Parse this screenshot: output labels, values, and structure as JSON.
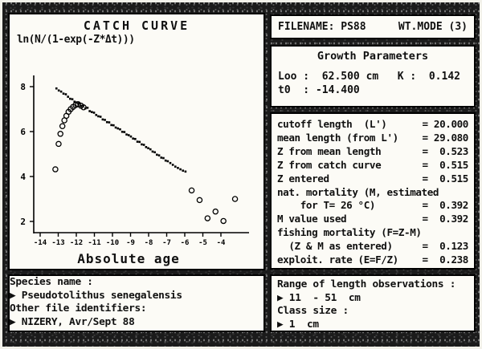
{
  "chart_panel": {
    "title": "CATCH CURVE",
    "y_axis_label": "ln(N/(1-exp(-Z*Δt)))",
    "x_axis_label": "Absolute age"
  },
  "chart_data": {
    "type": "scatter",
    "title": "CATCH CURVE",
    "xlabel": "Absolute age",
    "ylabel": "ln(N/(1-exp(-Z*Δt)))",
    "xlim": [
      -14.4,
      -2.5
    ],
    "ylim": [
      1.4,
      9.2
    ],
    "x_ticks": [
      -14,
      -13,
      -12,
      -11,
      -10,
      -9,
      -8,
      -7,
      -6,
      -5,
      -4
    ],
    "y_ticks": [
      8,
      6,
      4,
      2
    ],
    "grid": false,
    "legend": "none",
    "series": [
      {
        "name": "points-used-in-regression",
        "marker": "dot",
        "points": [
          [
            -13.1,
            7.92
          ],
          [
            -12.97,
            7.83
          ],
          [
            -12.84,
            7.78
          ],
          [
            -12.71,
            7.69
          ],
          [
            -12.58,
            7.66
          ],
          [
            -12.46,
            7.55
          ],
          [
            -12.34,
            7.46
          ],
          [
            -12.22,
            7.44
          ],
          [
            -12.1,
            7.33
          ],
          [
            -11.98,
            7.3
          ],
          [
            -11.86,
            7.26
          ],
          [
            -11.74,
            7.14
          ],
          [
            -11.62,
            7.14
          ],
          [
            -11.5,
            7.03
          ],
          [
            -11.38,
            7.06
          ],
          [
            -11.26,
            6.91
          ],
          [
            -11.14,
            6.87
          ],
          [
            -11.02,
            6.84
          ],
          [
            -10.9,
            6.74
          ],
          [
            -10.78,
            6.68
          ],
          [
            -10.66,
            6.66
          ],
          [
            -10.54,
            6.54
          ],
          [
            -10.42,
            6.52
          ],
          [
            -10.3,
            6.42
          ],
          [
            -10.18,
            6.41
          ],
          [
            -10.06,
            6.29
          ],
          [
            -9.94,
            6.28
          ],
          [
            -9.82,
            6.18
          ],
          [
            -9.7,
            6.14
          ],
          [
            -9.58,
            6.1
          ],
          [
            -9.46,
            5.99
          ],
          [
            -9.34,
            5.98
          ],
          [
            -9.22,
            5.87
          ],
          [
            -9.1,
            5.84
          ],
          [
            -8.98,
            5.78
          ],
          [
            -8.86,
            5.69
          ],
          [
            -8.74,
            5.67
          ],
          [
            -8.62,
            5.55
          ],
          [
            -8.5,
            5.54
          ],
          [
            -8.38,
            5.43
          ],
          [
            -8.26,
            5.41
          ],
          [
            -8.14,
            5.31
          ],
          [
            -8.02,
            5.26
          ],
          [
            -7.9,
            5.21
          ],
          [
            -7.78,
            5.11
          ],
          [
            -7.66,
            5.08
          ],
          [
            -7.54,
            4.97
          ],
          [
            -7.42,
            4.94
          ],
          [
            -7.3,
            4.84
          ],
          [
            -7.18,
            4.82
          ],
          [
            -7.06,
            4.71
          ],
          [
            -6.94,
            4.68
          ],
          [
            -6.8,
            4.6
          ],
          [
            -6.66,
            4.52
          ],
          [
            -6.52,
            4.44
          ],
          [
            -6.38,
            4.38
          ],
          [
            -6.24,
            4.32
          ],
          [
            -6.1,
            4.26
          ],
          [
            -5.96,
            4.22
          ]
        ]
      },
      {
        "name": "ascending-limb-circles-not-used",
        "marker": "circle",
        "points": [
          [
            -13.16,
            4.32
          ],
          [
            -12.98,
            5.45
          ],
          [
            -12.88,
            5.9
          ],
          [
            -12.77,
            6.24
          ],
          [
            -12.66,
            6.5
          ],
          [
            -12.55,
            6.7
          ],
          [
            -12.43,
            6.88
          ],
          [
            -12.31,
            7.0
          ],
          [
            -12.18,
            7.1
          ],
          [
            -12.04,
            7.18
          ],
          [
            -11.9,
            7.22
          ],
          [
            -11.74,
            7.15
          ],
          [
            -11.6,
            7.08
          ]
        ]
      },
      {
        "name": "descending-tail-circles-not-used",
        "marker": "circle",
        "points": [
          [
            -5.62,
            3.38
          ],
          [
            -5.18,
            2.95
          ],
          [
            -4.74,
            2.14
          ],
          [
            -4.3,
            2.44
          ],
          [
            -3.86,
            2.02
          ],
          [
            -3.22,
            3.0
          ]
        ]
      }
    ]
  },
  "filename_bar": {
    "filename_label": "FILENAME: PS88",
    "mode_label": "WT.MODE (3)"
  },
  "growth_panel": {
    "title": "Growth Parameters",
    "lines": [
      "Loo :  62.500 cm   K :  0.142",
      "t0  : -14.400"
    ],
    "values": {
      "Loo": "62.500 cm",
      "K": "0.142",
      "t0": "-14.400"
    }
  },
  "params_panel": {
    "rows": [
      {
        "label": "cutoff length  (L')",
        "value": "20.000"
      },
      {
        "label": "mean length (from L')",
        "value": "29.080"
      },
      {
        "label": "Z from mean length",
        "value": "0.523"
      },
      {
        "label": "Z from catch curve",
        "value": "0.515"
      },
      {
        "label": "Z entered",
        "value": "0.515"
      },
      {
        "label": "nat. mortality (M, estimated",
        "value": null
      },
      {
        "label": "    for T= 26 °C)",
        "value": "0.392"
      },
      {
        "label": "M value used",
        "value": "0.392"
      },
      {
        "label": "fishing mortality (F=Z-M)",
        "value": null
      },
      {
        "label": "  (Z & M as entered)",
        "value": "0.123"
      },
      {
        "label": "exploit. rate (E=F/Z)",
        "value": "0.238"
      }
    ]
  },
  "species_panel": {
    "lines": [
      "Species name :",
      "▶ Pseudotolithus senegalensis",
      "Other file identifiers:",
      "▶ NIZERY, Avr/Sept 88"
    ]
  },
  "range_panel": {
    "lines": [
      "Range of length observations :",
      "▶ 11  - 51  cm",
      "Class size :",
      "▶ 1  cm"
    ]
  },
  "colors": {
    "paper": "#fcfbf6",
    "ink": "#101010",
    "frame": "#1b1b1b"
  }
}
